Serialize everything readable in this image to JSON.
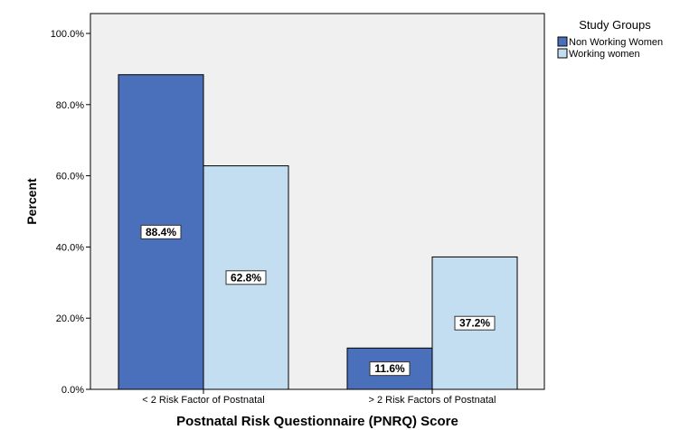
{
  "chart_data": {
    "type": "bar",
    "title": "",
    "xlabel": "Postnatal Risk Questionnaire (PNRQ) Score",
    "ylabel": "Percent",
    "ylim": [
      0,
      100
    ],
    "yticks": [
      "0.0%",
      "20.0%",
      "40.0%",
      "60.0%",
      "80.0%",
      "100.0%"
    ],
    "categories": [
      "< 2 Risk Factor of Postnatal",
      "> 2 Risk Factors of Postnatal"
    ],
    "legend_title": "Study Groups",
    "legend_position": "top-right",
    "grid": false,
    "series": [
      {
        "name": "Non Working Women",
        "values": [
          88.4,
          11.6
        ],
        "labels": [
          "88.4%",
          "11.6%"
        ],
        "color": "#4a6fbb"
      },
      {
        "name": "Working women",
        "values": [
          62.8,
          37.2
        ],
        "labels": [
          "62.8%",
          "37.2%"
        ],
        "color": "#c3def0"
      }
    ],
    "plot_background": "#f0f0f0"
  }
}
